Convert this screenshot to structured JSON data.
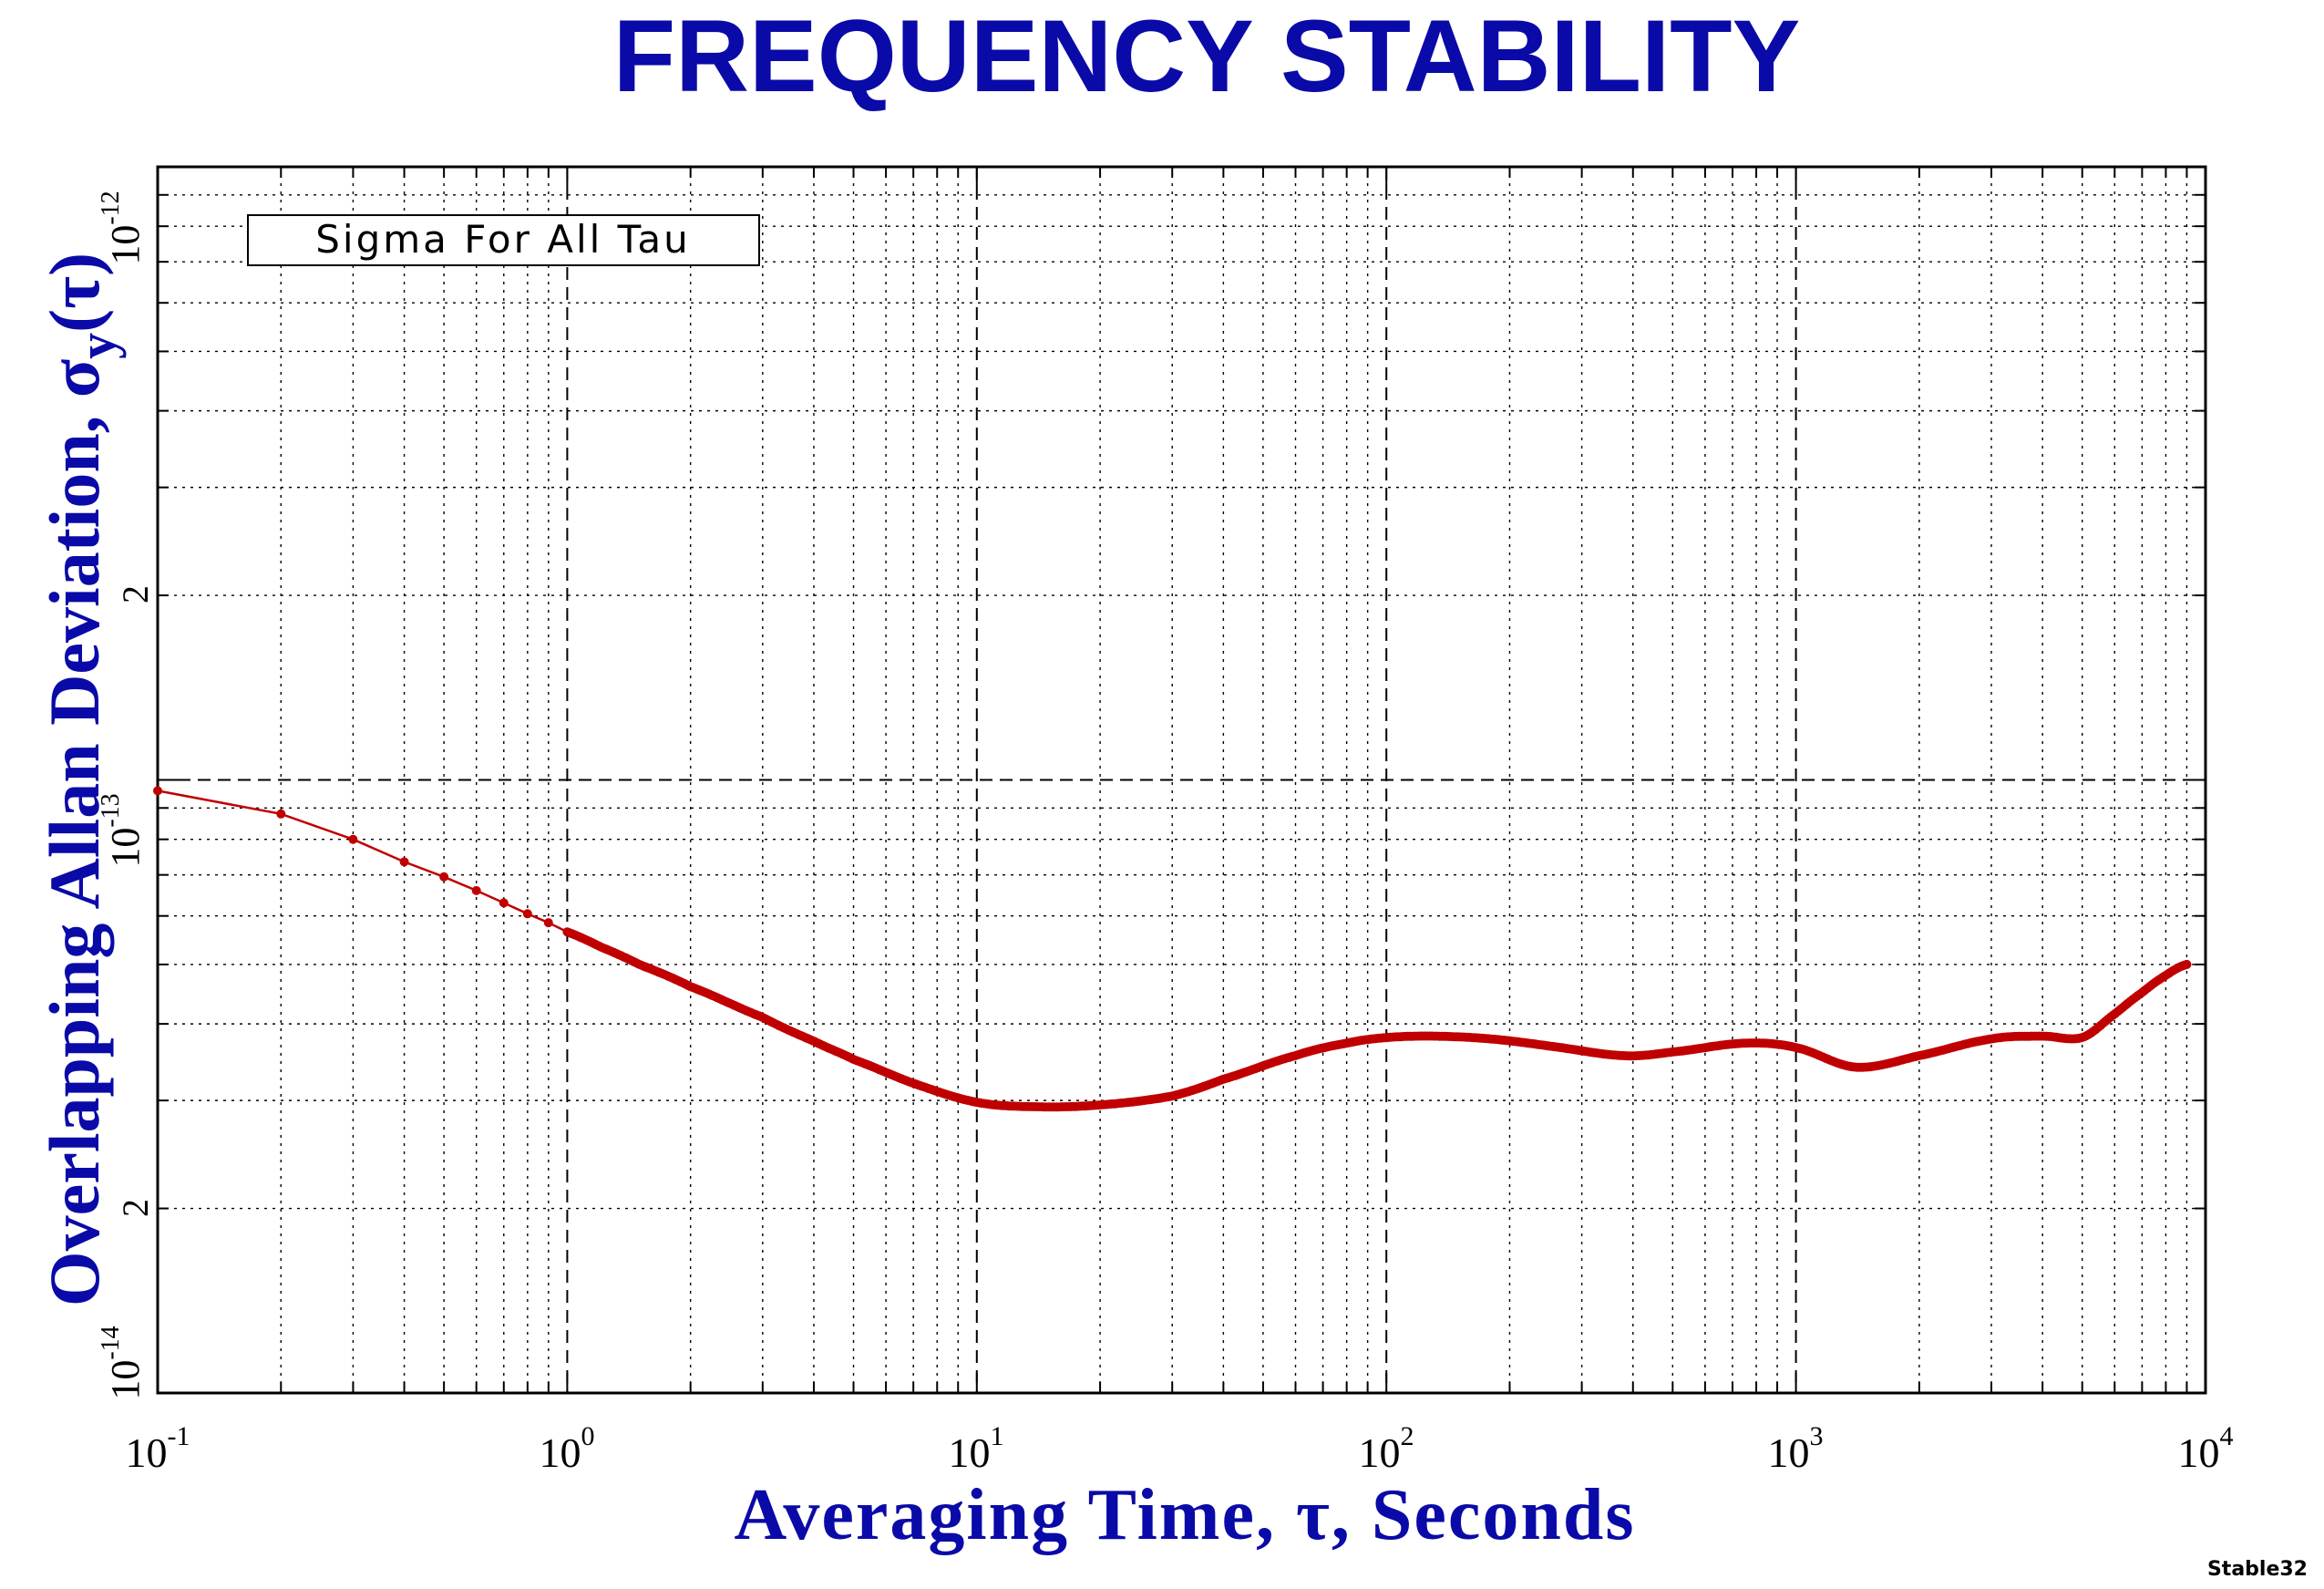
{
  "chart_data": {
    "type": "line",
    "title": "FREQUENCY STABILITY",
    "xlabel": "Averaging Time, τ, Seconds",
    "ylabel": "Overlapping Allan Deviation, σy(τ)",
    "ylabel_main": "Overlapping Allan Deviation, σ",
    "ylabel_sub": "y",
    "ylabel_tail": "(τ)",
    "xscale": "log",
    "yscale": "log",
    "xlim": [
      0.1,
      10000
    ],
    "ylim": [
      1e-14,
      1e-12
    ],
    "grid": true,
    "legend": "Sigma For All Tau",
    "legend_position": "top-left",
    "x_tick_labels": [
      {
        "base": "10",
        "exp": "-1"
      },
      {
        "base": "10",
        "exp": "0"
      },
      {
        "base": "10",
        "exp": "1"
      },
      {
        "base": "10",
        "exp": "2"
      },
      {
        "base": "10",
        "exp": "3"
      },
      {
        "base": "10",
        "exp": "4"
      }
    ],
    "y_tick_labels": [
      {
        "base": "10",
        "exp": "-12"
      },
      {
        "base": "10",
        "exp": "-13"
      },
      {
        "base": "10",
        "exp": "-14"
      },
      {
        "text": "2"
      },
      {
        "text": "2"
      }
    ],
    "series": [
      {
        "name": "Sigma For All Tau",
        "color": "#c00000",
        "x": [
          0.1,
          0.2,
          0.3,
          0.4,
          0.5,
          0.6,
          0.7,
          0.8,
          0.9,
          1.0,
          1.2,
          1.5,
          2,
          3,
          4,
          5,
          7,
          10,
          14,
          20,
          30,
          40,
          60,
          80,
          100,
          130,
          180,
          250,
          380,
          500,
          750,
          1000,
          1400,
          2000,
          3000,
          4000,
          5000,
          6000,
          7000,
          8000,
          9000
        ],
        "y": [
          9.6e-14,
          8.8e-14,
          8e-14,
          7.35e-14,
          6.95e-14,
          6.6e-14,
          6.3e-14,
          6.05e-14,
          5.85e-14,
          5.65e-14,
          5.35e-14,
          5e-14,
          4.6e-14,
          4.1e-14,
          3.75e-14,
          3.5e-14,
          3.2e-14,
          2.98e-14,
          2.93e-14,
          2.95e-14,
          3.05e-14,
          3.25e-14,
          3.55e-14,
          3.72e-14,
          3.8e-14,
          3.82e-14,
          3.78e-14,
          3.68e-14,
          3.55e-14,
          3.6e-14,
          3.72e-14,
          3.66e-14,
          3.4e-14,
          3.55e-14,
          3.78e-14,
          3.82e-14,
          3.8e-14,
          4.15e-14,
          4.5e-14,
          4.8e-14,
          5e-14
        ]
      }
    ]
  },
  "footer": {
    "credit": "Stable32"
  }
}
